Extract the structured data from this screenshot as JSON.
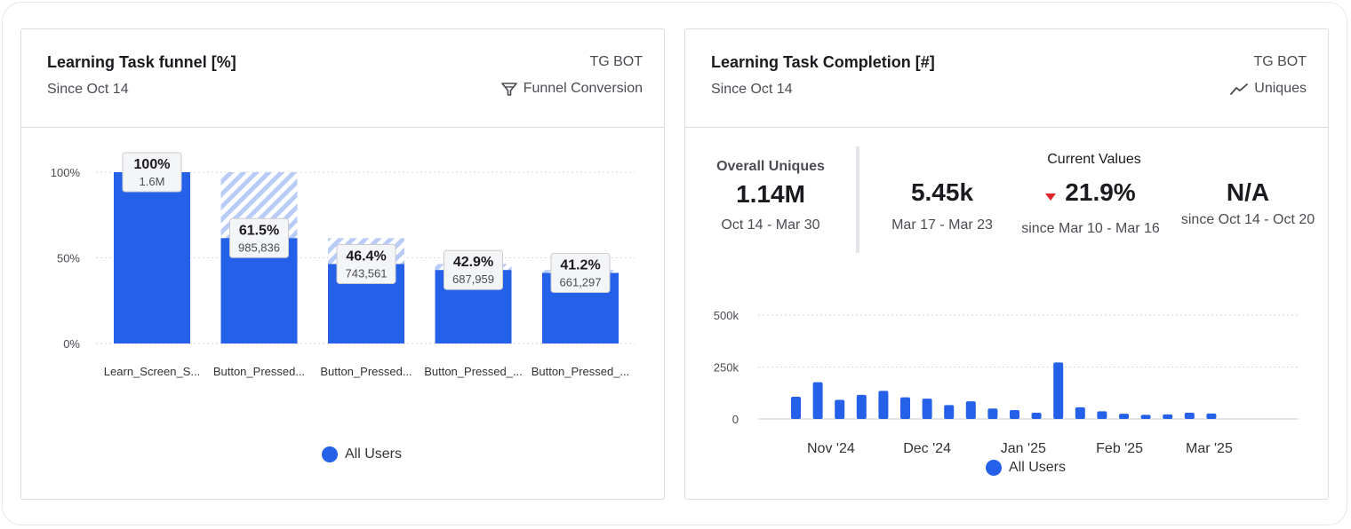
{
  "funnel_card": {
    "title": "Learning Task funnel [%]",
    "subtitle": "Since Oct 14",
    "source": "TG BOT",
    "chart_type_label": "Funnel Conversion",
    "chart_type_icon": "funnel-icon",
    "legend_label": "All Users"
  },
  "completion_card": {
    "title": "Learning Task Completion [#]",
    "subtitle": "Since Oct 14",
    "source": "TG BOT",
    "chart_type_label": "Uniques",
    "chart_type_icon": "trend-line-icon",
    "overall": {
      "label": "Overall Uniques",
      "value": "1.14M",
      "range": "Oct 14 - Mar 30"
    },
    "current": {
      "label": "Current Values",
      "value": "5.45k",
      "value_range": "Mar 17 - Mar 23",
      "change": "21.9%",
      "change_direction": "down",
      "change_range": "since Mar 10 - Mar 16",
      "baseline": "N/A",
      "baseline_range": "since Oct 14 - Oct 20"
    },
    "legend_label": "All Users"
  },
  "colors": {
    "bar": "#2461e8",
    "dropoff": "#b9ccf7",
    "decrease": "#e0262b"
  },
  "chart_data": [
    {
      "type": "bar",
      "categories": [
        "Learn_Screen_S...",
        "Button_Pressed...",
        "Button_Pressed...",
        "Button_Pressed_...",
        "Button_Pressed_..."
      ],
      "series": [
        {
          "name": "All Users",
          "values": [
            100,
            61.5,
            46.4,
            42.9,
            41.2
          ]
        }
      ],
      "percent_labels": [
        "100%",
        "61.5%",
        "46.4%",
        "42.9%",
        "41.2%"
      ],
      "count_labels": [
        "1.6M",
        "985,836",
        "743,561",
        "687,959",
        "661,297"
      ],
      "y_ticks": [
        0,
        50,
        100
      ],
      "y_tick_labels": [
        "0%",
        "50%",
        "100%"
      ],
      "ylim": [
        0,
        100
      ],
      "grid": true,
      "legend": "bottom"
    },
    {
      "type": "bar",
      "x_tick_labels": [
        "Nov '24",
        "Dec '24",
        "Jan '25",
        "Feb '25",
        "Mar '25"
      ],
      "x_tick_positions": [
        1.6,
        6,
        10.4,
        14.8,
        18.9
      ],
      "series": [
        {
          "name": "All Users",
          "values": [
            107000,
            177000,
            92000,
            116000,
            135000,
            104000,
            98000,
            67000,
            85000,
            50000,
            43000,
            30000,
            272000,
            56000,
            37000,
            25000,
            20000,
            22000,
            30000,
            26000
          ]
        }
      ],
      "y_ticks": [
        0,
        250000,
        500000
      ],
      "y_tick_labels": [
        "0",
        "250k",
        "500k"
      ],
      "ylim": [
        0,
        500000
      ],
      "grid": true,
      "legend": "bottom"
    }
  ]
}
